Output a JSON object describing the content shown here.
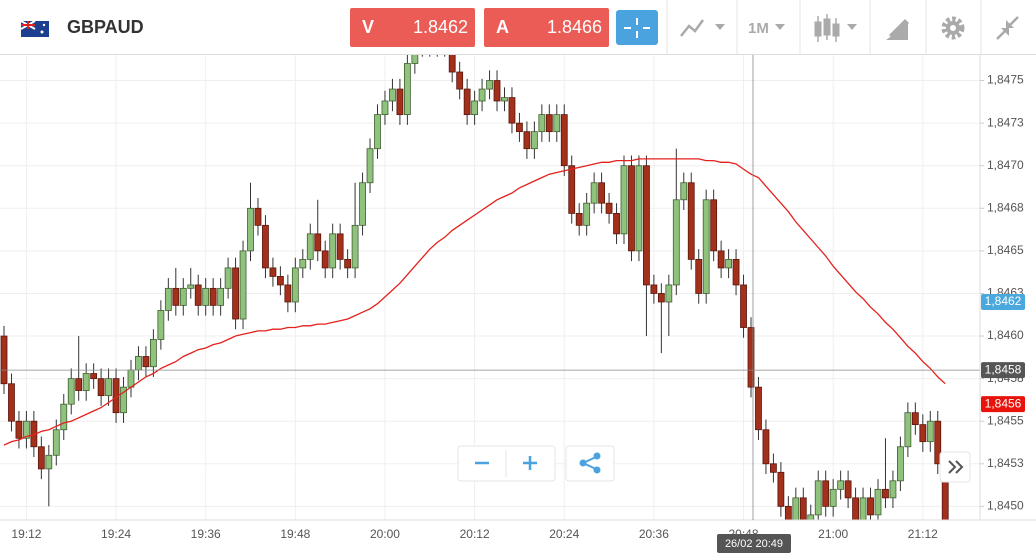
{
  "header": {
    "symbol": "GBPAUD",
    "sell_label": "V",
    "sell_price": "1.8462",
    "buy_label": "A",
    "buy_price": "1.8466",
    "timeframe": "1M"
  },
  "chart_data": {
    "type": "candlestick",
    "categories": [
      null,
      null,
      null,
      "19:12",
      null,
      null,
      null,
      null,
      null,
      null,
      null,
      null,
      null,
      null,
      null,
      "19:24",
      null,
      null,
      null,
      null,
      null,
      null,
      null,
      null,
      null,
      null,
      null,
      "19:36",
      null,
      null,
      null,
      null,
      null,
      null,
      null,
      null,
      null,
      null,
      null,
      "19:48",
      null,
      null,
      null,
      null,
      null,
      null,
      null,
      null,
      null,
      null,
      null,
      "20:00",
      null,
      null,
      null,
      null,
      null,
      null,
      null,
      null,
      null,
      null,
      null,
      "20:12",
      null,
      null,
      null,
      null,
      null,
      null,
      null,
      null,
      null,
      null,
      null,
      "20:24",
      null,
      null,
      null,
      null,
      null,
      null,
      null,
      null,
      null,
      null,
      null,
      "20:36",
      null,
      null,
      null,
      null,
      null,
      null,
      null,
      null,
      null,
      null,
      null,
      "20:48",
      null,
      null,
      null,
      null,
      null,
      null,
      null,
      null,
      null,
      null,
      null,
      "21:00",
      null,
      null,
      null,
      null,
      null,
      null,
      null,
      null,
      null,
      null,
      null,
      "21:12",
      null,
      null,
      null
    ],
    "open": [
      1.846,
      1.84572,
      1.8455,
      1.8454,
      1.8455,
      1.84535,
      1.84522,
      1.8453,
      1.84545,
      1.8456,
      1.84575,
      1.84568,
      1.84578,
      1.84575,
      1.84565,
      1.84575,
      1.84555,
      1.8457,
      1.8458,
      1.84588,
      1.84582,
      1.84598,
      1.84615,
      1.84628,
      1.84618,
      1.84628,
      1.8463,
      1.84618,
      1.84628,
      1.84618,
      1.84628,
      1.8464,
      1.8461,
      1.8465,
      1.84675,
      1.84665,
      1.8464,
      1.84635,
      1.8463,
      1.8462,
      1.8464,
      1.84645,
      1.8466,
      1.8465,
      1.8464,
      1.8466,
      1.84645,
      1.8464,
      1.84665,
      1.8469,
      1.8471,
      1.8473,
      1.84738,
      1.84745,
      1.8473,
      1.8476,
      1.8477,
      1.84775,
      1.8477,
      1.84775,
      1.8477,
      1.84755,
      1.84745,
      1.8473,
      1.84738,
      1.84745,
      1.8475,
      1.84738,
      1.8474,
      1.84725,
      1.8472,
      1.8471,
      1.8472,
      1.8473,
      1.8472,
      1.8473,
      1.847,
      1.84672,
      1.84665,
      1.84678,
      1.8469,
      1.84678,
      1.84672,
      1.8466,
      1.847,
      1.8465,
      1.847,
      1.8463,
      1.84625,
      1.8462,
      1.8463,
      1.8468,
      1.8469,
      1.84645,
      1.84625,
      1.8468,
      1.8465,
      1.8464,
      1.84645,
      1.8463,
      1.84605,
      1.8457,
      1.84545,
      1.84525,
      1.8452,
      1.845,
      1.8449,
      1.84505,
      1.8448,
      1.84495,
      1.84515,
      1.845,
      1.8451,
      1.84515,
      1.84505,
      1.8449,
      1.84505,
      1.84495,
      1.8451,
      1.84505,
      1.84515,
      1.84535,
      1.84555,
      1.84548,
      1.84538,
      1.8455,
      1.84525
    ],
    "high": [
      1.84606,
      1.84578,
      1.84556,
      1.84556,
      1.84556,
      1.84541,
      1.84536,
      1.84551,
      1.84566,
      1.84581,
      1.846,
      1.84584,
      1.84584,
      1.84581,
      1.84581,
      1.84581,
      1.84576,
      1.84586,
      1.84594,
      1.84594,
      1.84604,
      1.84621,
      1.84634,
      1.8464,
      1.84634,
      1.8464,
      1.84636,
      1.84634,
      1.84634,
      1.84634,
      1.84646,
      1.84646,
      1.84656,
      1.8469,
      1.84681,
      1.84671,
      1.84646,
      1.84641,
      1.84636,
      1.84646,
      1.84651,
      1.84666,
      1.8468,
      1.84656,
      1.84666,
      1.84666,
      1.84651,
      1.8469,
      1.84696,
      1.84716,
      1.84736,
      1.84744,
      1.84751,
      1.84751,
      1.84766,
      1.84776,
      1.84781,
      1.84781,
      1.84781,
      1.84781,
      1.84776,
      1.84761,
      1.84751,
      1.84744,
      1.84751,
      1.84756,
      1.84756,
      1.84746,
      1.84746,
      1.84731,
      1.84726,
      1.84726,
      1.84736,
      1.84736,
      1.84736,
      1.84736,
      1.84706,
      1.84678,
      1.84684,
      1.84696,
      1.84696,
      1.84684,
      1.84678,
      1.84706,
      1.84706,
      1.84706,
      1.84706,
      1.84636,
      1.84631,
      1.84636,
      1.8471,
      1.84696,
      1.84696,
      1.84651,
      1.84686,
      1.84686,
      1.84656,
      1.84651,
      1.84651,
      1.84636,
      1.84611,
      1.84576,
      1.84551,
      1.84531,
      1.84526,
      1.84506,
      1.84511,
      1.84511,
      1.84501,
      1.84521,
      1.84521,
      1.84516,
      1.84521,
      1.84521,
      1.84511,
      1.84511,
      1.84511,
      1.84516,
      1.8454,
      1.84521,
      1.84541,
      1.84561,
      1.84561,
      1.84554,
      1.84556,
      1.84556,
      1.84531
    ],
    "low": [
      1.84566,
      1.84544,
      1.84534,
      1.84534,
      1.84529,
      1.84516,
      1.845,
      1.84524,
      1.84539,
      1.84554,
      1.84562,
      1.84562,
      1.84569,
      1.84559,
      1.84559,
      1.84549,
      1.84549,
      1.84564,
      1.84574,
      1.84576,
      1.84576,
      1.84592,
      1.84609,
      1.84612,
      1.84612,
      1.84622,
      1.84612,
      1.84612,
      1.84612,
      1.84612,
      1.84622,
      1.84604,
      1.84604,
      1.84644,
      1.84659,
      1.84634,
      1.84629,
      1.84624,
      1.84614,
      1.84614,
      1.84634,
      1.84639,
      1.84644,
      1.84634,
      1.84634,
      1.84639,
      1.84634,
      1.84634,
      1.84659,
      1.84684,
      1.84704,
      1.84724,
      1.84732,
      1.84724,
      1.84724,
      1.84754,
      1.84764,
      1.84764,
      1.84764,
      1.84764,
      1.84749,
      1.84739,
      1.84724,
      1.84724,
      1.84732,
      1.84739,
      1.84732,
      1.84732,
      1.84719,
      1.84714,
      1.84704,
      1.84704,
      1.84714,
      1.84714,
      1.84714,
      1.84694,
      1.84666,
      1.84659,
      1.84659,
      1.84672,
      1.84672,
      1.84666,
      1.84654,
      1.84654,
      1.84644,
      1.84644,
      1.846,
      1.84619,
      1.8459,
      1.846,
      1.84624,
      1.84674,
      1.84639,
      1.84619,
      1.84619,
      1.84644,
      1.84634,
      1.84634,
      1.84624,
      1.84599,
      1.84564,
      1.84539,
      1.84519,
      1.84514,
      1.84494,
      1.84484,
      1.84484,
      1.84474,
      1.84474,
      1.84489,
      1.84494,
      1.84494,
      1.84504,
      1.84499,
      1.84484,
      1.84484,
      1.84489,
      1.84489,
      1.84499,
      1.84499,
      1.84509,
      1.84529,
      1.84542,
      1.84532,
      1.84532,
      1.84519,
      1.84479
    ],
    "close": [
      1.84572,
      1.8455,
      1.8454,
      1.8455,
      1.84535,
      1.84522,
      1.8453,
      1.84545,
      1.8456,
      1.84575,
      1.84568,
      1.84578,
      1.84575,
      1.84565,
      1.84575,
      1.84555,
      1.8457,
      1.8458,
      1.84588,
      1.84582,
      1.84598,
      1.84615,
      1.84628,
      1.84618,
      1.84628,
      1.8463,
      1.84618,
      1.84628,
      1.84618,
      1.84628,
      1.8464,
      1.8461,
      1.8465,
      1.84675,
      1.84665,
      1.8464,
      1.84635,
      1.8463,
      1.8462,
      1.8464,
      1.84645,
      1.8466,
      1.8465,
      1.8464,
      1.8466,
      1.84645,
      1.8464,
      1.84665,
      1.8469,
      1.8471,
      1.8473,
      1.84738,
      1.84745,
      1.8473,
      1.8476,
      1.8477,
      1.84775,
      1.8477,
      1.84775,
      1.8477,
      1.84755,
      1.84745,
      1.8473,
      1.84738,
      1.84745,
      1.8475,
      1.84738,
      1.8474,
      1.84725,
      1.8472,
      1.8471,
      1.8472,
      1.8473,
      1.8472,
      1.8473,
      1.847,
      1.84672,
      1.84665,
      1.84678,
      1.8469,
      1.84678,
      1.84672,
      1.8466,
      1.847,
      1.8465,
      1.847,
      1.8463,
      1.84625,
      1.8462,
      1.8463,
      1.8468,
      1.8469,
      1.84645,
      1.84625,
      1.8468,
      1.8465,
      1.8464,
      1.84645,
      1.8463,
      1.84605,
      1.8457,
      1.84545,
      1.84525,
      1.8452,
      1.845,
      1.8449,
      1.84505,
      1.8448,
      1.84495,
      1.84515,
      1.845,
      1.8451,
      1.84515,
      1.84505,
      1.8449,
      1.84505,
      1.84495,
      1.8451,
      1.84505,
      1.84515,
      1.84535,
      1.84555,
      1.84548,
      1.84538,
      1.8455,
      1.84525,
      1.84485
    ],
    "up_color": "#8fc27c",
    "down_color": "#a2301b",
    "moving_average": {
      "color": "#e3211c",
      "values": [
        1.84536,
        1.84538,
        1.84539,
        1.84541,
        1.84542,
        1.84544,
        1.84545,
        1.84547,
        1.84549,
        1.8455,
        1.84552,
        1.84554,
        1.84556,
        1.84558,
        1.84561,
        1.84564,
        1.84567,
        1.8457,
        1.84573,
        1.84576,
        1.84578,
        1.84581,
        1.84583,
        1.84585,
        1.84588,
        1.8459,
        1.84592,
        1.84593,
        1.84595,
        1.84596,
        1.84598,
        1.846,
        1.84601,
        1.84602,
        1.84603,
        1.84603,
        1.84604,
        1.84604,
        1.84605,
        1.84605,
        1.84606,
        1.84606,
        1.84607,
        1.84607,
        1.84608,
        1.84609,
        1.8461,
        1.84612,
        1.84614,
        1.84616,
        1.84619,
        1.84623,
        1.84627,
        1.84631,
        1.84636,
        1.84641,
        1.84646,
        1.84651,
        1.84655,
        1.84658,
        1.84662,
        1.84665,
        1.84668,
        1.84671,
        1.84674,
        1.84677,
        1.8468,
        1.84682,
        1.84684,
        1.84687,
        1.84689,
        1.84691,
        1.84693,
        1.84695,
        1.84696,
        1.84697,
        1.84698,
        1.84699,
        1.847,
        1.84701,
        1.84702,
        1.84702,
        1.84703,
        1.84703,
        1.84703,
        1.84704,
        1.84704,
        1.84704,
        1.84704,
        1.84704,
        1.84704,
        1.84704,
        1.84704,
        1.84704,
        1.84703,
        1.84703,
        1.84702,
        1.84702,
        1.84701,
        1.84698,
        1.84695,
        1.84693,
        1.84688,
        1.84683,
        1.84678,
        1.84673,
        1.84667,
        1.84662,
        1.84657,
        1.84652,
        1.84647,
        1.84641,
        1.84636,
        1.84631,
        1.84626,
        1.84622,
        1.84617,
        1.84613,
        1.84608,
        1.84604,
        1.84599,
        1.84594,
        1.8459,
        1.84585,
        1.84581,
        1.84576,
        1.84572
      ]
    },
    "ylim": [
      1.84492,
      1.84765
    ],
    "yticks": [
      {
        "value": 1.845,
        "label": "1,8450"
      },
      {
        "value": 1.84525,
        "label": "1,8453"
      },
      {
        "value": 1.8455,
        "label": "1,8455"
      },
      {
        "value": 1.84575,
        "label": "1,8458"
      },
      {
        "value": 1.846,
        "label": "1,8460"
      },
      {
        "value": 1.84625,
        "label": "1,8463"
      },
      {
        "value": 1.8465,
        "label": "1,8465"
      },
      {
        "value": 1.84675,
        "label": "1,8468"
      },
      {
        "value": 1.847,
        "label": "1,8470"
      },
      {
        "value": 1.84725,
        "label": "1,8473"
      },
      {
        "value": 1.8475,
        "label": "1,8475"
      }
    ],
    "grid": true,
    "price_markers": [
      {
        "value": 1.8462,
        "label": "1,8462",
        "color": "#4aa8dc"
      },
      {
        "value": 1.8458,
        "label": "1,8458",
        "color": "#555555"
      },
      {
        "value": 1.8456,
        "label": "1,8456",
        "color": "#e8140c"
      }
    ],
    "crosshair_label": "26/02 20:49"
  }
}
